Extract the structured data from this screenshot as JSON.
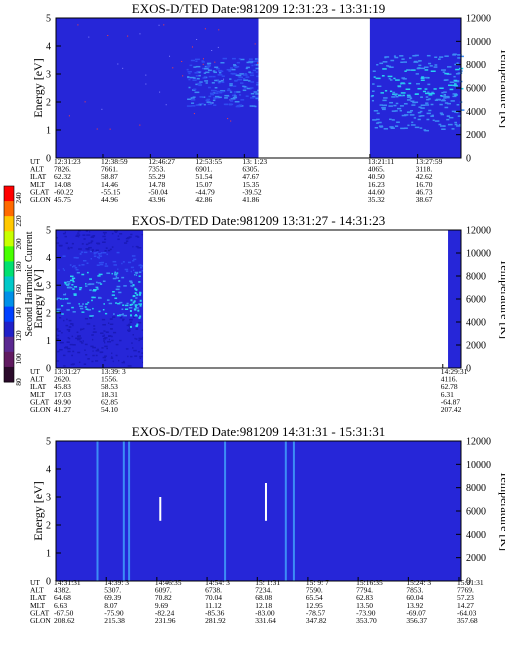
{
  "colors": {
    "plot_bg": "#2626d8",
    "plot_dark": "#1a1ab8",
    "band_mid": "#2f4cf0",
    "band_light": "#3c8cf5",
    "band_cyan": "#28d0f0",
    "gap": "#ffffff",
    "speck": "#ff4040"
  },
  "colorbar": {
    "label": "Second Harmonic Current",
    "ticks": [
      "240",
      "220",
      "200",
      "180",
      "160",
      "140",
      "120",
      "100",
      "80"
    ],
    "colors": [
      "#ff0000",
      "#ff6a00",
      "#ffc800",
      "#c8ff00",
      "#48ff00",
      "#00e070",
      "#00c8c8",
      "#0090e8",
      "#0040ff",
      "#2020c8",
      "#5a2890",
      "#601a60",
      "#2a0a2a"
    ]
  },
  "chart_data": [
    {
      "type": "heatmap",
      "title": "EXOS-D/TED   Date:981209   12:31:23 - 13:31:19",
      "ylabel": "Energy [eV]",
      "y2label": "Temperature [K]",
      "ylim": [
        0,
        5
      ],
      "y2lim": [
        0,
        12000
      ],
      "yticks": [
        "0",
        "1",
        "2",
        "3",
        "4",
        "5"
      ],
      "y2ticks": [
        "0",
        "2000",
        "4000",
        "6000",
        "8000",
        "10000",
        "12000"
      ],
      "gaps": [
        [
          0.5,
          0.775
        ]
      ],
      "rows": [
        "UT",
        "ALT",
        "ILAT",
        "MLT",
        "GLAT",
        "GLON"
      ],
      "columns": [
        {
          "pos": 0.0,
          "values": [
            "12:31:23",
            "7826.",
            "62.32",
            "14.08",
            "-60.22",
            "45.75"
          ]
        },
        {
          "pos": 0.116,
          "values": [
            "12:38:59",
            "7661.",
            "58.87",
            "14.46",
            "-55.15",
            "44.96"
          ]
        },
        {
          "pos": 0.233,
          "values": [
            "12:46:27",
            "7353.",
            "55.29",
            "14.78",
            "-50.04",
            "43.96"
          ]
        },
        {
          "pos": 0.349,
          "values": [
            "12:53:55",
            "6901.",
            "51.54",
            "15.07",
            "-44.79",
            "42.86"
          ]
        },
        {
          "pos": 0.465,
          "values": [
            "13: 1:23",
            "6305.",
            "47.67",
            "15.35",
            "-39.52",
            "41.86"
          ]
        },
        {
          "pos": 0.775,
          "values": [
            "13:21:11",
            "4065.",
            "40.50",
            "16.23",
            "44.60",
            "35.32"
          ]
        },
        {
          "pos": 0.893,
          "values": [
            "13:27:59",
            "3118.",
            "42.62",
            "16.70",
            "46.73",
            "38.67"
          ]
        }
      ]
    },
    {
      "type": "heatmap",
      "title": "EXOS-D/TED   Date:981209   13:31:27 - 14:31:23",
      "ylabel": "Energy [eV]",
      "y2label": "Temperature [K]",
      "ylim": [
        0,
        5
      ],
      "y2lim": [
        0,
        12000
      ],
      "yticks": [
        "0",
        "1",
        "2",
        "3",
        "4",
        "5"
      ],
      "y2ticks": [
        "0",
        "2000",
        "4000",
        "6000",
        "8000",
        "10000",
        "12000"
      ],
      "gaps": [
        [
          0.215,
          0.968
        ]
      ],
      "rows": [
        "UT",
        "ALT",
        "ILAT",
        "MLT",
        "GLAT",
        "GLON"
      ],
      "columns": [
        {
          "pos": 0.0,
          "values": [
            "13:31:27",
            "2620.",
            "45.83",
            "17.03",
            "49.90",
            "41.27"
          ]
        },
        {
          "pos": 0.116,
          "values": [
            "13:39: 3",
            "1556.",
            "58.53",
            "18.31",
            "62.85",
            "54.10"
          ]
        },
        {
          "pos": 0.955,
          "values": [
            "14:29:31",
            "4116.",
            "62.78",
            "6.31",
            "-64.87",
            "207.42"
          ]
        }
      ]
    },
    {
      "type": "heatmap",
      "title": "EXOS-D/TED   Date:981209   14:31:31 - 15:31:31",
      "ylabel": "Energy [eV]",
      "y2label": "Temperature [K]",
      "ylim": [
        0,
        5
      ],
      "y2lim": [
        0,
        12000
      ],
      "yticks": [
        "0",
        "1",
        "2",
        "3",
        "4",
        "5"
      ],
      "y2ticks": [
        "0",
        "2000",
        "4000",
        "6000",
        "8000",
        "10000",
        "12000"
      ],
      "gaps": [],
      "rows": [
        "UT",
        "ALT",
        "ILAT",
        "MLT",
        "GLAT",
        "GLON"
      ],
      "columns": [
        {
          "pos": 0.0,
          "values": [
            "14:31:31",
            "4382.",
            "64.68",
            "6.63",
            "-67.50",
            "208.62"
          ]
        },
        {
          "pos": 0.124,
          "values": [
            "14:39: 3",
            "5307.",
            "69.39",
            "8.07",
            "-75.90",
            "215.38"
          ]
        },
        {
          "pos": 0.249,
          "values": [
            "14:46:35",
            "6097.",
            "70.82",
            "9.69",
            "-82.24",
            "231.96"
          ]
        },
        {
          "pos": 0.373,
          "values": [
            "14:54: 3",
            "6738.",
            "70.04",
            "11.12",
            "-85.36",
            "281.92"
          ]
        },
        {
          "pos": 0.497,
          "values": [
            "15: 1:31",
            "7234.",
            "68.08",
            "12.18",
            "-83.00",
            "331.64"
          ]
        },
        {
          "pos": 0.622,
          "values": [
            "15: 9: 7",
            "7590.",
            "65.54",
            "12.95",
            "-78.57",
            "347.82"
          ]
        },
        {
          "pos": 0.746,
          "values": [
            "15:16:35",
            "7794.",
            "62.83",
            "13.50",
            "-73.90",
            "353.70"
          ]
        },
        {
          "pos": 0.87,
          "values": [
            "15:24: 3",
            "7853.",
            "60.04",
            "13.92",
            "-69.07",
            "356.37"
          ]
        },
        {
          "pos": 0.995,
          "values": [
            "15:31:31",
            "7769.",
            "57.23",
            "14.27",
            "-64.03",
            "357.68"
          ]
        }
      ]
    }
  ]
}
